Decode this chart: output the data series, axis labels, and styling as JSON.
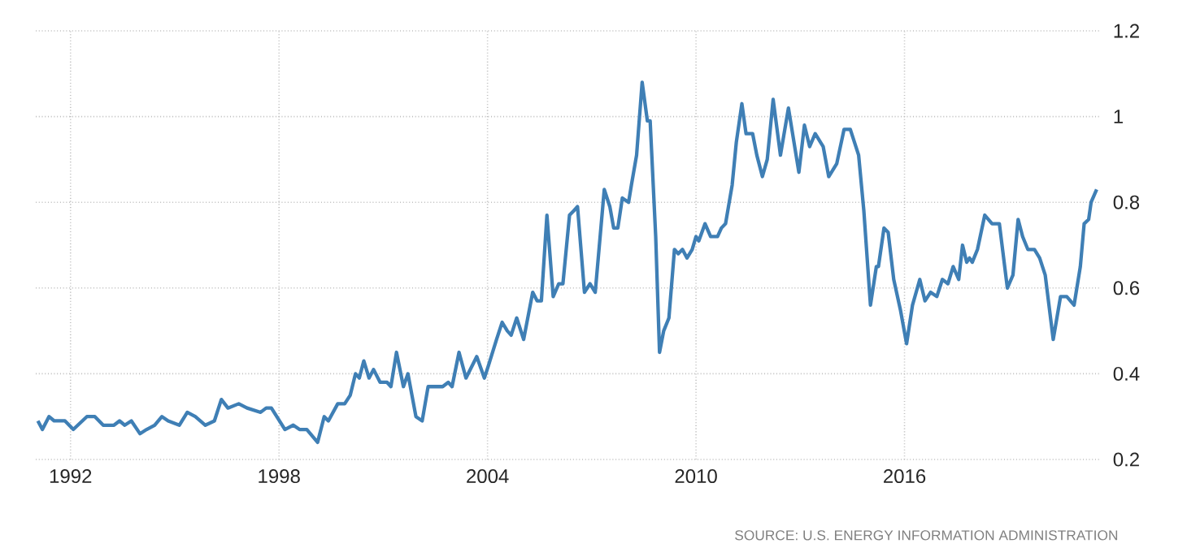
{
  "chart_data": {
    "type": "line",
    "x": [
      1991.06,
      1991.19,
      1991.38,
      1991.53,
      1991.84,
      1992.08,
      1992.47,
      1992.7,
      1992.94,
      1993.25,
      1993.41,
      1993.56,
      1993.75,
      1994.0,
      1994.19,
      1994.42,
      1994.63,
      1994.81,
      1995.13,
      1995.36,
      1995.59,
      1995.88,
      1996.14,
      1996.34,
      1996.53,
      1996.84,
      1997.08,
      1997.47,
      1997.63,
      1997.78,
      1998.17,
      1998.41,
      1998.59,
      1998.8,
      1999.11,
      1999.3,
      1999.42,
      1999.69,
      1999.89,
      2000.05,
      2000.2,
      2000.31,
      2000.44,
      2000.59,
      2000.72,
      2000.91,
      2001.11,
      2001.22,
      2001.38,
      2001.58,
      2001.71,
      2001.94,
      2002.12,
      2002.29,
      2002.48,
      2002.71,
      2002.87,
      2002.98,
      2003.18,
      2003.38,
      2003.69,
      2003.91,
      2004.03,
      2004.26,
      2004.42,
      2004.57,
      2004.68,
      2004.84,
      2005.04,
      2005.3,
      2005.43,
      2005.55,
      2005.71,
      2005.89,
      2006.05,
      2006.17,
      2006.36,
      2006.48,
      2006.59,
      2006.79,
      2006.95,
      2007.1,
      2007.36,
      2007.52,
      2007.63,
      2007.75,
      2007.88,
      2008.06,
      2008.14,
      2008.29,
      2008.45,
      2008.6,
      2008.68,
      2008.84,
      2008.95,
      2009.07,
      2009.22,
      2009.38,
      2009.49,
      2009.61,
      2009.74,
      2009.89,
      2010.0,
      2010.08,
      2010.26,
      2010.42,
      2010.62,
      2010.73,
      2010.85,
      2011.04,
      2011.16,
      2011.32,
      2011.44,
      2011.63,
      2011.75,
      2011.91,
      2012.05,
      2012.22,
      2012.43,
      2012.66,
      2012.96,
      2013.12,
      2013.27,
      2013.43,
      2013.66,
      2013.82,
      2014.05,
      2014.26,
      2014.44,
      2014.68,
      2014.83,
      2015.02,
      2015.19,
      2015.25,
      2015.41,
      2015.53,
      2015.69,
      2015.88,
      2016.06,
      2016.23,
      2016.44,
      2016.59,
      2016.75,
      2016.93,
      2017.09,
      2017.25,
      2017.4,
      2017.56,
      2017.67,
      2017.79,
      2017.87,
      2017.95,
      2018.1,
      2018.31,
      2018.52,
      2018.73,
      2018.96,
      2019.12,
      2019.27,
      2019.4,
      2019.55,
      2019.74,
      2019.89,
      2020.05,
      2020.28,
      2020.49,
      2020.67,
      2020.88,
      2021.06,
      2021.17,
      2021.3,
      2021.37,
      2021.53
    ],
    "series": [
      {
        "color": "#3f7fb5",
        "values": [
          0.29,
          0.27,
          0.3,
          0.29,
          0.29,
          0.27,
          0.3,
          0.3,
          0.28,
          0.28,
          0.29,
          0.28,
          0.29,
          0.26,
          0.27,
          0.28,
          0.3,
          0.29,
          0.28,
          0.31,
          0.3,
          0.28,
          0.29,
          0.34,
          0.32,
          0.33,
          0.32,
          0.31,
          0.32,
          0.32,
          0.27,
          0.28,
          0.27,
          0.27,
          0.24,
          0.3,
          0.29,
          0.33,
          0.33,
          0.35,
          0.4,
          0.39,
          0.43,
          0.39,
          0.41,
          0.38,
          0.38,
          0.37,
          0.45,
          0.37,
          0.4,
          0.3,
          0.29,
          0.37,
          0.37,
          0.37,
          0.38,
          0.37,
          0.45,
          0.39,
          0.44,
          0.39,
          0.42,
          0.48,
          0.52,
          0.5,
          0.49,
          0.53,
          0.48,
          0.59,
          0.57,
          0.57,
          0.77,
          0.58,
          0.61,
          0.61,
          0.77,
          0.78,
          0.79,
          0.59,
          0.61,
          0.59,
          0.83,
          0.79,
          0.74,
          0.74,
          0.81,
          0.8,
          0.84,
          0.91,
          1.08,
          0.99,
          0.99,
          0.72,
          0.45,
          0.5,
          0.53,
          0.69,
          0.68,
          0.69,
          0.67,
          0.69,
          0.72,
          0.71,
          0.75,
          0.72,
          0.72,
          0.74,
          0.75,
          0.84,
          0.94,
          1.03,
          0.96,
          0.96,
          0.91,
          0.86,
          0.9,
          1.04,
          0.91,
          1.02,
          0.87,
          0.98,
          0.93,
          0.96,
          0.93,
          0.86,
          0.89,
          0.97,
          0.97,
          0.91,
          0.78,
          0.56,
          0.65,
          0.65,
          0.74,
          0.73,
          0.62,
          0.55,
          0.47,
          0.56,
          0.62,
          0.57,
          0.59,
          0.58,
          0.62,
          0.61,
          0.65,
          0.62,
          0.7,
          0.66,
          0.67,
          0.66,
          0.69,
          0.77,
          0.75,
          0.75,
          0.6,
          0.63,
          0.76,
          0.72,
          0.69,
          0.69,
          0.67,
          0.63,
          0.48,
          0.58,
          0.58,
          0.56,
          0.65,
          0.75,
          0.76,
          0.8,
          0.83
        ]
      }
    ],
    "xlim": [
      1991.0,
      2021.65
    ],
    "ylim": [
      0.2,
      1.2
    ],
    "xticks": [
      1992,
      1998,
      2004,
      2010,
      2016
    ],
    "yticks": [
      0.2,
      0.4,
      0.6,
      0.8,
      1,
      1.2
    ],
    "grid": true,
    "annotations": [
      "SOURCE: U.S. ENERGY INFORMATION ADMINISTRATION"
    ]
  }
}
